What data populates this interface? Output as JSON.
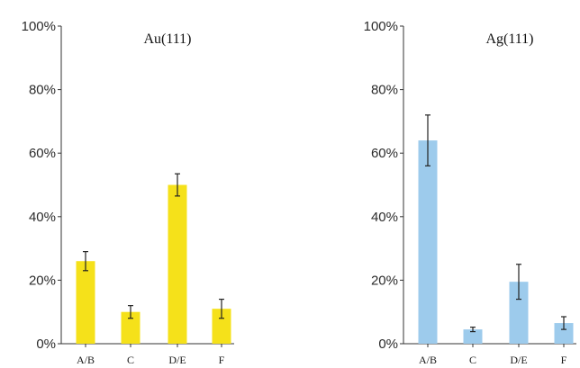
{
  "chart_data": [
    {
      "type": "bar",
      "title": "Au(111)",
      "categories": [
        "A/B",
        "C",
        "D/E",
        "F"
      ],
      "values": [
        26,
        10,
        50,
        11
      ],
      "error": [
        3,
        2,
        3.5,
        3
      ],
      "y_ticks": [
        "0%",
        "20%",
        "40%",
        "60%",
        "80%",
        "100%"
      ],
      "ylim": [
        0,
        100
      ],
      "color": "#f5e11a",
      "grid": false
    },
    {
      "type": "bar",
      "title": "Ag(111)",
      "categories": [
        "A/B",
        "C",
        "D/E",
        "F"
      ],
      "values": [
        64,
        4.5,
        19.5,
        6.5
      ],
      "error": [
        8,
        0.7,
        5.5,
        2
      ],
      "y_ticks": [
        "0%",
        "20%",
        "40%",
        "60%",
        "80%",
        "100%"
      ],
      "ylim": [
        0,
        100
      ],
      "color": "#9dcbec",
      "grid": false
    }
  ]
}
